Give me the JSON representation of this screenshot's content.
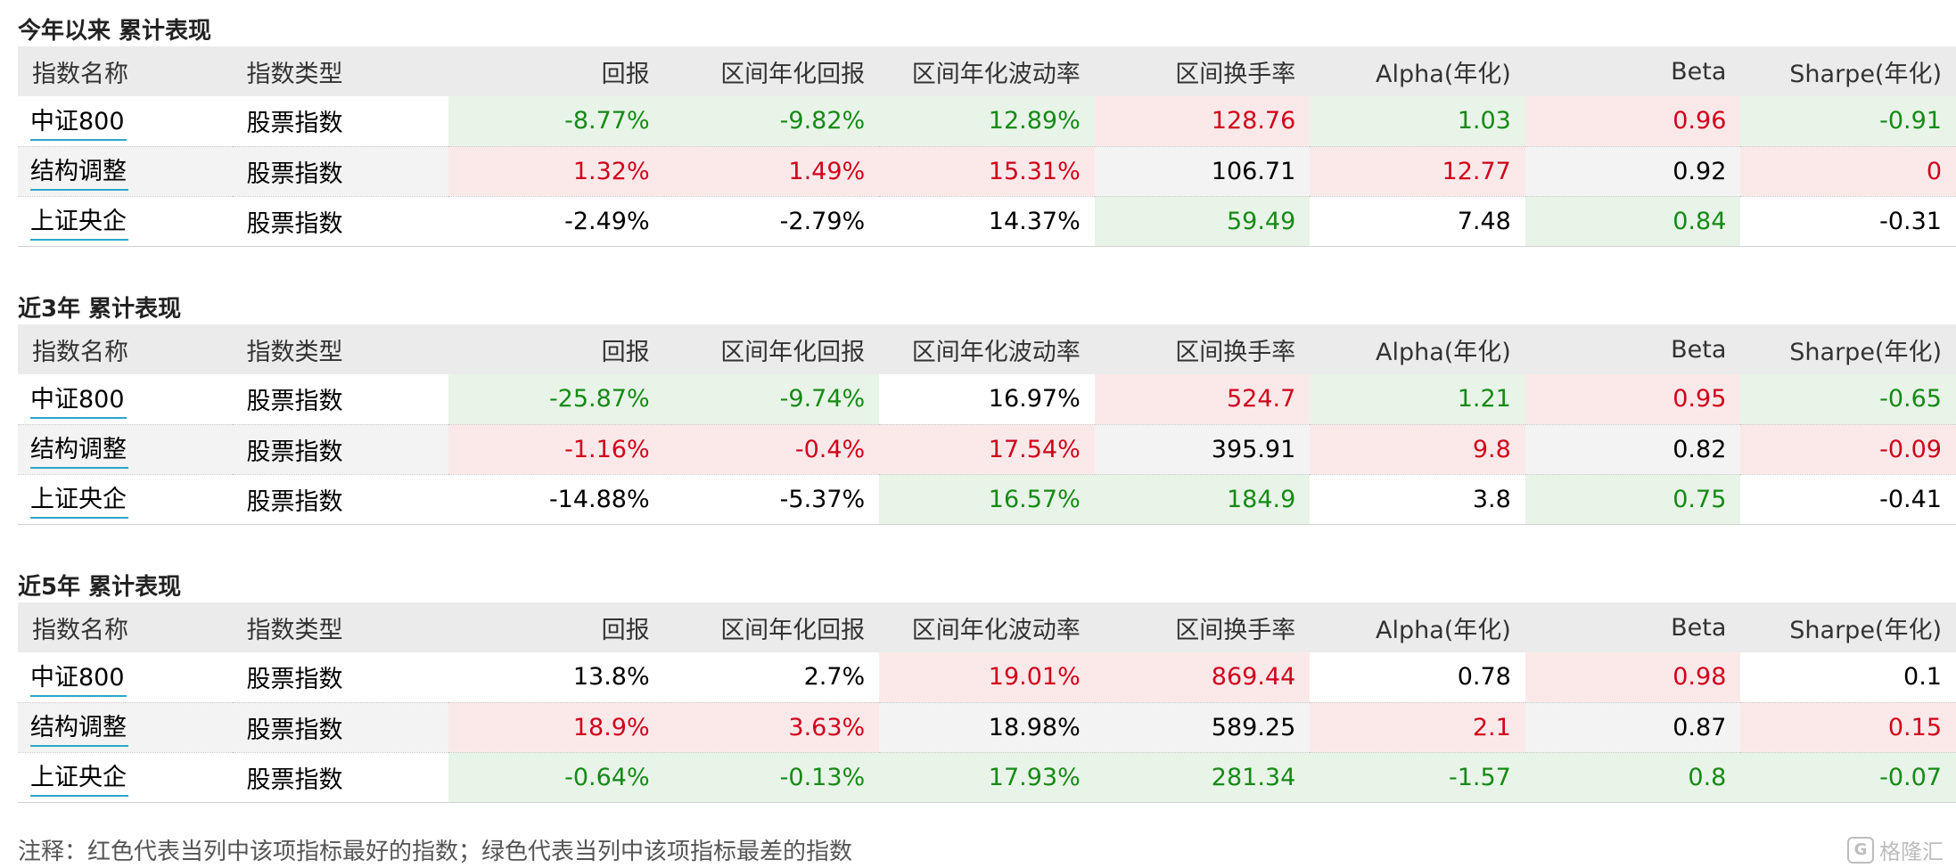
{
  "headers": [
    "指数名称",
    "指数类型",
    "回报",
    "区间年化回报",
    "区间年化波动率",
    "区间换手率",
    "Alpha(年化)",
    "Beta",
    "Sharpe(年化)"
  ],
  "colors": {
    "best": "#d0021b",
    "worst": "#168a16",
    "best_bg": "#fbe9ea",
    "worst_bg": "#e8f4e8",
    "header_bg": "#ebebeb",
    "underline": "#2aa7c9"
  },
  "sections": [
    {
      "title": "今年以来 累计表现",
      "rows": [
        {
          "name": "中证800",
          "type": "股票指数",
          "values": [
            "-8.77%",
            "-9.82%",
            "12.89%",
            "128.76",
            "1.03",
            "0.96",
            "-0.91"
          ],
          "marks": [
            "worst",
            "worst",
            "worst",
            "best",
            "worst",
            "best",
            "worst"
          ]
        },
        {
          "name": "结构调整",
          "type": "股票指数",
          "values": [
            "1.32%",
            "1.49%",
            "15.31%",
            "106.71",
            "12.77",
            "0.92",
            "0"
          ],
          "marks": [
            "best",
            "best",
            "best",
            "none",
            "best",
            "none",
            "best"
          ]
        },
        {
          "name": "上证央企",
          "type": "股票指数",
          "values": [
            "-2.49%",
            "-2.79%",
            "14.37%",
            "59.49",
            "7.48",
            "0.84",
            "-0.31"
          ],
          "marks": [
            "none",
            "none",
            "none",
            "worst",
            "none",
            "worst",
            "none"
          ]
        }
      ]
    },
    {
      "title": "近3年 累计表现",
      "rows": [
        {
          "name": "中证800",
          "type": "股票指数",
          "values": [
            "-25.87%",
            "-9.74%",
            "16.97%",
            "524.7",
            "1.21",
            "0.95",
            "-0.65"
          ],
          "marks": [
            "worst",
            "worst",
            "none",
            "best",
            "worst",
            "best",
            "worst"
          ]
        },
        {
          "name": "结构调整",
          "type": "股票指数",
          "values": [
            "-1.16%",
            "-0.4%",
            "17.54%",
            "395.91",
            "9.8",
            "0.82",
            "-0.09"
          ],
          "marks": [
            "best",
            "best",
            "best",
            "none",
            "best",
            "none",
            "best"
          ]
        },
        {
          "name": "上证央企",
          "type": "股票指数",
          "values": [
            "-14.88%",
            "-5.37%",
            "16.57%",
            "184.9",
            "3.8",
            "0.75",
            "-0.41"
          ],
          "marks": [
            "none",
            "none",
            "worst",
            "worst",
            "none",
            "worst",
            "none"
          ]
        }
      ]
    },
    {
      "title": "近5年 累计表现",
      "rows": [
        {
          "name": "中证800",
          "type": "股票指数",
          "values": [
            "13.8%",
            "2.7%",
            "19.01%",
            "869.44",
            "0.78",
            "0.98",
            "0.1"
          ],
          "marks": [
            "none",
            "none",
            "best",
            "best",
            "none",
            "best",
            "none"
          ]
        },
        {
          "name": "结构调整",
          "type": "股票指数",
          "values": [
            "18.9%",
            "3.63%",
            "18.98%",
            "589.25",
            "2.1",
            "0.87",
            "0.15"
          ],
          "marks": [
            "best",
            "best",
            "none",
            "none",
            "best",
            "none",
            "best"
          ]
        },
        {
          "name": "上证央企",
          "type": "股票指数",
          "values": [
            "-0.64%",
            "-0.13%",
            "17.93%",
            "281.34",
            "-1.57",
            "0.8",
            "-0.07"
          ],
          "marks": [
            "worst",
            "worst",
            "worst",
            "worst",
            "worst",
            "worst",
            "worst"
          ]
        }
      ]
    }
  ],
  "note": "注释：红色代表当列中该项指标最好的指数；绿色代表当列中该项指标最差的指数",
  "watermark": {
    "icon": "G",
    "text": "格隆汇"
  }
}
